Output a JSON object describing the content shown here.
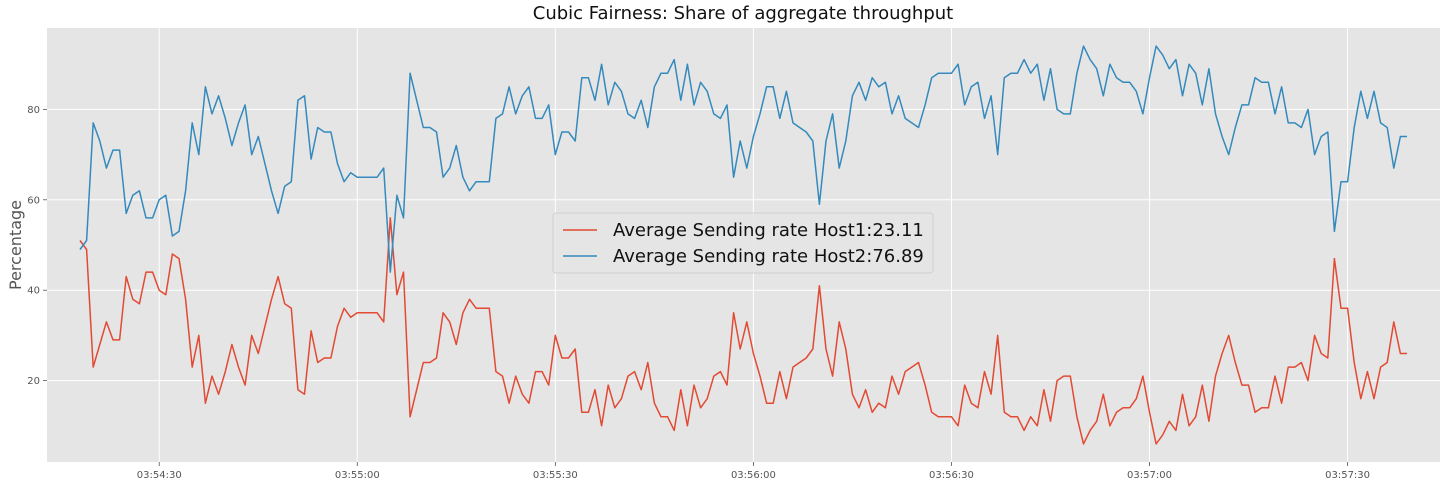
{
  "chart_data": {
    "type": "line",
    "title": "Cubic Fairness: Share of aggregate throughput",
    "xlabel": "",
    "ylabel": "Percentage",
    "x_tick_labels": [
      "03:54:30",
      "03:55:00",
      "03:55:30",
      "03:56:00",
      "03:56:30",
      "03:57:00",
      "03:57:30"
    ],
    "y_tick_labels": [
      "20",
      "40",
      "60",
      "80"
    ],
    "x_range": [
      "03:54:13",
      "03:57:44"
    ],
    "ylim": [
      2,
      98
    ],
    "grid": true,
    "legend_position": "center",
    "x": [
      "03:54:18",
      "03:54:19",
      "03:54:20",
      "03:54:21",
      "03:54:22",
      "03:54:23",
      "03:54:24",
      "03:54:25",
      "03:54:26",
      "03:54:27",
      "03:54:28",
      "03:54:29",
      "03:54:30",
      "03:54:31",
      "03:54:32",
      "03:54:33",
      "03:54:34",
      "03:54:35",
      "03:54:36",
      "03:54:37",
      "03:54:38",
      "03:54:39",
      "03:54:40",
      "03:54:41",
      "03:54:42",
      "03:54:43",
      "03:54:44",
      "03:54:45",
      "03:54:46",
      "03:54:47",
      "03:54:48",
      "03:54:49",
      "03:54:50",
      "03:54:51",
      "03:54:52",
      "03:54:53",
      "03:54:54",
      "03:54:55",
      "03:54:56",
      "03:54:57",
      "03:54:58",
      "03:54:59",
      "03:55:00",
      "03:55:01",
      "03:55:02",
      "03:55:03",
      "03:55:04",
      "03:55:05",
      "03:55:06",
      "03:55:07",
      "03:55:08",
      "03:55:09",
      "03:55:10",
      "03:55:11",
      "03:55:12",
      "03:55:13",
      "03:55:14",
      "03:55:15",
      "03:55:16",
      "03:55:17",
      "03:55:18",
      "03:55:19",
      "03:55:20",
      "03:55:21",
      "03:55:22",
      "03:55:23",
      "03:55:24",
      "03:55:25",
      "03:55:26",
      "03:55:27",
      "03:55:28",
      "03:55:29",
      "03:55:30",
      "03:55:31",
      "03:55:32",
      "03:55:33",
      "03:55:34",
      "03:55:35",
      "03:55:36",
      "03:55:37",
      "03:55:38",
      "03:55:39",
      "03:55:40",
      "03:55:41",
      "03:55:42",
      "03:55:43",
      "03:55:44",
      "03:55:45",
      "03:55:46",
      "03:55:47",
      "03:55:48",
      "03:55:49",
      "03:55:50",
      "03:55:51",
      "03:55:52",
      "03:55:53",
      "03:55:54",
      "03:55:55",
      "03:55:56",
      "03:55:57",
      "03:55:58",
      "03:55:59",
      "03:56:00",
      "03:56:01",
      "03:56:02",
      "03:56:03",
      "03:56:04",
      "03:56:05",
      "03:56:06",
      "03:56:07",
      "03:56:08",
      "03:56:09",
      "03:56:10",
      "03:56:11",
      "03:56:12",
      "03:56:13",
      "03:56:14",
      "03:56:15",
      "03:56:16",
      "03:56:17",
      "03:56:18",
      "03:56:19",
      "03:56:20",
      "03:56:21",
      "03:56:22",
      "03:56:23",
      "03:56:24",
      "03:56:25",
      "03:56:26",
      "03:56:27",
      "03:56:28",
      "03:56:29",
      "03:56:30",
      "03:56:31",
      "03:56:32",
      "03:56:33",
      "03:56:34",
      "03:56:35",
      "03:56:36",
      "03:56:37",
      "03:56:38",
      "03:56:39",
      "03:56:40",
      "03:56:41",
      "03:56:42",
      "03:56:43",
      "03:56:44",
      "03:56:45",
      "03:56:46",
      "03:56:47",
      "03:56:48",
      "03:56:49",
      "03:56:50",
      "03:56:51",
      "03:56:52",
      "03:56:53",
      "03:56:54",
      "03:56:55",
      "03:56:56",
      "03:56:57",
      "03:56:58",
      "03:56:59",
      "03:57:00",
      "03:57:01",
      "03:57:02",
      "03:57:03",
      "03:57:04",
      "03:57:05",
      "03:57:06",
      "03:57:07",
      "03:57:08",
      "03:57:09",
      "03:57:10",
      "03:57:11",
      "03:57:12",
      "03:57:13",
      "03:57:14",
      "03:57:15",
      "03:57:16",
      "03:57:17",
      "03:57:18",
      "03:57:19",
      "03:57:20",
      "03:57:21",
      "03:57:22",
      "03:57:23",
      "03:57:24",
      "03:57:25",
      "03:57:26",
      "03:57:27",
      "03:57:28",
      "03:57:29",
      "03:57:30",
      "03:57:31",
      "03:57:32",
      "03:57:33",
      "03:57:34",
      "03:57:35",
      "03:57:36",
      "03:57:37",
      "03:57:38",
      "03:57:39"
    ],
    "series": [
      {
        "name": "Average Sending rate Host1:23.11",
        "color": "#e24a33",
        "values": [
          51,
          49,
          23,
          28,
          33,
          29,
          29,
          43,
          38,
          37,
          44,
          44,
          40,
          39,
          48,
          47,
          38,
          23,
          30,
          15,
          21,
          17,
          22,
          28,
          23,
          19,
          30,
          26,
          32,
          38,
          43,
          37,
          36,
          18,
          17,
          31,
          24,
          25,
          25,
          32,
          36,
          34,
          35,
          35,
          35,
          35,
          33,
          56,
          39,
          44,
          12,
          18,
          24,
          24,
          25,
          35,
          33,
          28,
          35,
          38,
          36,
          36,
          36,
          22,
          21,
          15,
          21,
          17,
          15,
          22,
          22,
          19,
          30,
          25,
          25,
          27,
          13,
          13,
          18,
          10,
          19,
          14,
          16,
          21,
          22,
          18,
          24,
          15,
          12,
          12,
          9,
          18,
          10,
          19,
          14,
          16,
          21,
          22,
          19,
          35,
          27,
          33,
          26,
          21,
          15,
          15,
          22,
          16,
          23,
          24,
          25,
          27,
          41,
          27,
          21,
          33,
          27,
          17,
          14,
          18,
          13,
          15,
          14,
          21,
          17,
          22,
          23,
          24,
          19,
          13,
          12,
          12,
          12,
          10,
          19,
          15,
          14,
          22,
          17,
          30,
          13,
          12,
          12,
          9,
          12,
          10,
          18,
          11,
          20,
          21,
          21,
          12,
          6,
          9,
          11,
          17,
          10,
          13,
          14,
          14,
          16,
          21,
          13,
          6,
          8,
          11,
          9,
          17,
          10,
          12,
          19,
          11,
          21,
          26,
          30,
          24,
          19,
          19,
          13,
          14,
          14,
          21,
          15,
          23,
          23,
          24,
          20,
          30,
          26,
          25,
          47,
          36,
          36,
          24,
          16,
          22,
          16,
          23,
          24,
          33,
          26,
          26
        ]
      },
      {
        "name": "Average Sending rate Host2:76.89",
        "color": "#348abd",
        "values": [
          49,
          51,
          77,
          73,
          67,
          71,
          71,
          57,
          61,
          62,
          56,
          56,
          60,
          61,
          52,
          53,
          62,
          77,
          70,
          85,
          79,
          83,
          78,
          72,
          77,
          81,
          70,
          74,
          68,
          62,
          57,
          63,
          64,
          82,
          83,
          69,
          76,
          75,
          75,
          68,
          64,
          66,
          65,
          65,
          65,
          65,
          67,
          44,
          61,
          56,
          88,
          82,
          76,
          76,
          75,
          65,
          67,
          72,
          65,
          62,
          64,
          64,
          64,
          78,
          79,
          85,
          79,
          83,
          85,
          78,
          78,
          81,
          70,
          75,
          75,
          73,
          87,
          87,
          82,
          90,
          81,
          86,
          84,
          79,
          78,
          82,
          76,
          85,
          88,
          88,
          91,
          82,
          90,
          81,
          86,
          84,
          79,
          78,
          81,
          65,
          73,
          67,
          74,
          79,
          85,
          85,
          78,
          84,
          77,
          76,
          75,
          73,
          59,
          73,
          79,
          67,
          73,
          83,
          86,
          82,
          87,
          85,
          86,
          79,
          83,
          78,
          77,
          76,
          81,
          87,
          88,
          88,
          88,
          90,
          81,
          85,
          86,
          78,
          83,
          70,
          87,
          88,
          88,
          91,
          88,
          90,
          82,
          89,
          80,
          79,
          79,
          88,
          94,
          91,
          89,
          83,
          90,
          87,
          86,
          86,
          84,
          79,
          87,
          94,
          92,
          89,
          91,
          83,
          90,
          88,
          81,
          89,
          79,
          74,
          70,
          76,
          81,
          81,
          87,
          86,
          86,
          79,
          85,
          77,
          77,
          76,
          80,
          70,
          74,
          75,
          53,
          64,
          64,
          76,
          84,
          78,
          84,
          77,
          76,
          67,
          74,
          74
        ]
      }
    ]
  }
}
